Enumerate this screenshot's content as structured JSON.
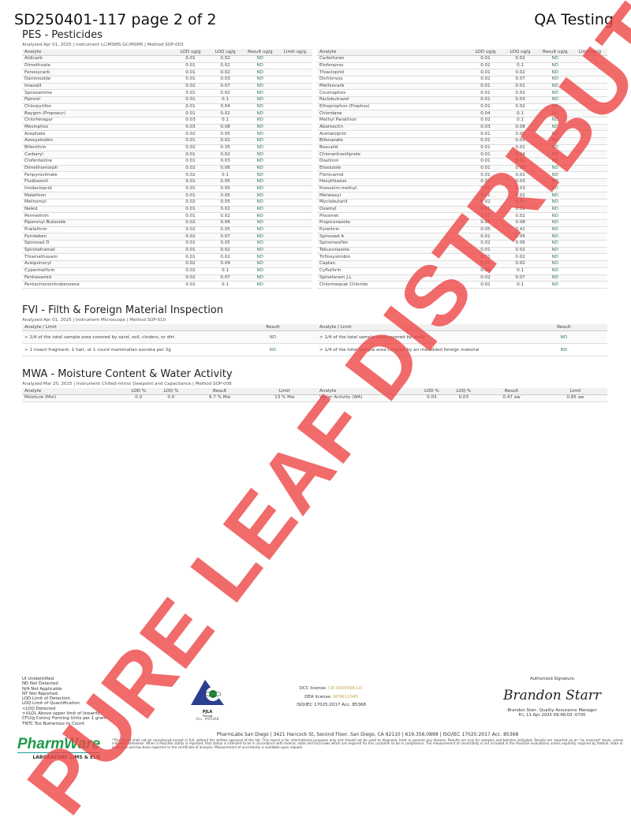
{
  "header": {
    "title": "SD250401-117 page 2 of 2",
    "client": "QA Testing"
  },
  "pes": {
    "title": "PES - Pesticides",
    "meta": "Analyzed Apr 01, 2025  |  Instrument LC/MSMS GC/MSMS  | Method SOP-003",
    "columns": [
      "Analyte",
      "LOD ug/g",
      "LOQ ug/g",
      "Result ug/g",
      "Limit ug/g"
    ],
    "left": [
      [
        "Aldicarb",
        "0.01",
        "0.02",
        "ND"
      ],
      [
        "Dimethoate",
        "0.01",
        "0.02",
        "ND"
      ],
      [
        "Fenoxycarb",
        "0.01",
        "0.02",
        "ND"
      ],
      [
        "Daminozide",
        "0.01",
        "0.03",
        "ND"
      ],
      [
        "Imazalil",
        "0.02",
        "0.07",
        "ND"
      ],
      [
        "Spiroxamine",
        "0.01",
        "0.02",
        "ND"
      ],
      [
        "Fipronil",
        "0.01",
        "0.1",
        "ND"
      ],
      [
        "Chlorpyrifos",
        "0.01",
        "0.04",
        "ND"
      ],
      [
        "Baygon (Propoxur)",
        "0.01",
        "0.02",
        "ND"
      ],
      [
        "Chlorfenapyr",
        "0.03",
        "0.1",
        "ND"
      ],
      [
        "Mevinphos",
        "0.03",
        "0.08",
        "ND"
      ],
      [
        "Acephate",
        "0.02",
        "0.05",
        "ND"
      ],
      [
        "Azoxystrobin",
        "0.01",
        "0.02",
        "ND"
      ],
      [
        "Bifenthrin",
        "0.02",
        "0.35",
        "ND"
      ],
      [
        "Carbaryl",
        "0.01",
        "0.02",
        "ND"
      ],
      [
        "Clofentezine",
        "0.01",
        "0.03",
        "ND"
      ],
      [
        "Dimethomorph",
        "0.02",
        "0.06",
        "ND"
      ],
      [
        "Fenpyroximate",
        "0.02",
        "0.1",
        "ND"
      ],
      [
        "Fludioxonil",
        "0.01",
        "0.05",
        "ND"
      ],
      [
        "Imidacloprid",
        "0.01",
        "0.05",
        "ND"
      ],
      [
        "Malathion",
        "0.01",
        "0.05",
        "ND"
      ],
      [
        "Methomyl",
        "0.02",
        "0.05",
        "ND"
      ],
      [
        "Naled",
        "0.01",
        "0.02",
        "ND"
      ],
      [
        "Permethrin",
        "0.01",
        "0.02",
        "ND"
      ],
      [
        "Piperonyl Butoxide",
        "0.02",
        "0.06",
        "ND"
      ],
      [
        "Prallethrin",
        "0.02",
        "0.05",
        "ND"
      ],
      [
        "Pyridaben",
        "0.02",
        "0.07",
        "ND"
      ],
      [
        "Spinosad D",
        "0.01",
        "0.05",
        "ND"
      ],
      [
        "Spirotetramat",
        "0.01",
        "0.02",
        "ND"
      ],
      [
        "Thiamethoxam",
        "0.01",
        "0.02",
        "ND"
      ],
      [
        "Acequinocyl",
        "0.02",
        "0.09",
        "ND"
      ],
      [
        "Cypermethrin",
        "0.02",
        "0.1",
        "ND"
      ],
      [
        "Fenhexamid",
        "0.02",
        "0.07",
        "ND"
      ],
      [
        "Pentachloronitrobenzene",
        "0.01",
        "0.1",
        "ND"
      ]
    ],
    "right": [
      [
        "Carbofuran",
        "0.01",
        "0.02",
        "ND"
      ],
      [
        "Etofenprox",
        "0.02",
        "0.1",
        "ND"
      ],
      [
        "Thiacloprid",
        "0.01",
        "0.02",
        "ND"
      ],
      [
        "Dichlorvos",
        "0.02",
        "0.07",
        "ND"
      ],
      [
        "Methiocarb",
        "0.01",
        "0.02",
        "ND"
      ],
      [
        "Coumaphos",
        "0.01",
        "0.02",
        "ND"
      ],
      [
        "Paclobutrazol",
        "0.01",
        "0.03",
        "ND"
      ],
      [
        "Ethoprophos (Prophos)",
        "0.01",
        "0.02",
        "ND"
      ],
      [
        "Chlordane",
        "0.04",
        "0.1",
        "ND"
      ],
      [
        "Methyl Parathion",
        "0.02",
        "0.1",
        "ND"
      ],
      [
        "Abamectin",
        "0.03",
        "0.08",
        "ND"
      ],
      [
        "Acetamiprid",
        "0.01",
        "0.05",
        "ND"
      ],
      [
        "Bifenazate",
        "0.01",
        "0.05",
        "ND"
      ],
      [
        "Boscalid",
        "0.01",
        "0.02",
        "ND"
      ],
      [
        "Chlorantraniliprole",
        "0.01",
        "0.04",
        "ND"
      ],
      [
        "Diazinon",
        "0.01",
        "0.02",
        "ND"
      ],
      [
        "Etoxazole",
        "0.01",
        "0.05",
        "ND"
      ],
      [
        "Flonicamid",
        "0.01",
        "0.02",
        "ND"
      ],
      [
        "Hexythiazox",
        "0.01",
        "0.03",
        "ND"
      ],
      [
        "Kresoxim-methyl",
        "0.01",
        "0.03",
        "ND"
      ],
      [
        "Metalaxyl",
        "0.01",
        "0.02",
        "ND"
      ],
      [
        "Myclobutanil",
        "0.02",
        "0.07",
        "ND"
      ],
      [
        "Oxamyl",
        "0.01",
        "0.02",
        "ND"
      ],
      [
        "Phosmet",
        "0.01",
        "0.02",
        "ND"
      ],
      [
        "Propiconazole",
        "0.03",
        "0.08",
        "ND"
      ],
      [
        "Pyrethrin",
        "0.05",
        "0.41",
        "ND"
      ],
      [
        "Spinosad A",
        "0.01",
        "0.05",
        "ND"
      ],
      [
        "Spiromesifen",
        "0.02",
        "0.06",
        "ND"
      ],
      [
        "Tebuconazole",
        "0.01",
        "0.02",
        "ND"
      ],
      [
        "Trifloxystrobin",
        "0.01",
        "0.02",
        "ND"
      ],
      [
        "Captan",
        "0.01",
        "0.02",
        "ND"
      ],
      [
        "Cyfluthrin",
        "0.04",
        "0.1",
        "ND"
      ],
      [
        "Spinetoram J,L",
        "0.02",
        "0.07",
        "ND"
      ],
      [
        "Chlormequat Chloride",
        "0.02",
        "0.1",
        "ND"
      ]
    ]
  },
  "fvi": {
    "title": "FVI - Filth & Foreign Material Inspection",
    "meta": "Analyzed Apr 01, 2025  |  Instrument Microscope  | Method SOP-010",
    "columns": [
      "Analyte / Limit",
      "Result"
    ],
    "left": [
      [
        "> 1/4 of the total sample area covered by sand, soil, cinders, or dirt",
        "ND"
      ],
      [
        "> 1 insect fragment, 1 hair, or 1 count mammalian excreta per 3g",
        "ND"
      ]
    ],
    "right": [
      [
        "> 1/4 of the total sample area covered by mold",
        "ND"
      ],
      [
        "> 1/4 of the total sample area covered by an imbedded foreign material",
        "ND"
      ]
    ]
  },
  "mwa": {
    "title": "MWA - Moisture Content & Water Activity",
    "meta": "Analyzed Mar 20, 2025  |  Instrument Chilled-mirror Dewpoint and Capacitance   | Method SOP-008",
    "columns": [
      "Analyte",
      "LOD %",
      "LOQ %",
      "Result",
      "Limit"
    ],
    "left": [
      [
        "Moisture (Moi)",
        "0.0",
        "0.0",
        "6.7 % Mw",
        "13 % Mw"
      ]
    ],
    "right": [
      [
        "Water Activity (WA)",
        "0.03",
        "0.03",
        "0.47 aw",
        "0.85 aw"
      ]
    ]
  },
  "footer": {
    "legend": [
      "UI Unidentified",
      "ND Not Detected",
      "N/A Not Applicable",
      "NT Not Reported",
      "LOD Limit of Detection",
      "LOQ Limit of Quantification",
      "<LOQ Detected",
      ">ULOL Above upper limit of linearity",
      "CFU/g Colony Forming Units per 1 gram",
      "TNTC Too Numerous to Count"
    ],
    "accreditation": {
      "name": "PJLA",
      "sub": "Testing",
      "acc": "Acc. #85368"
    },
    "dcc_label": "DCC license: ",
    "dcc": "C8-0000098-LIC",
    "dea_label": "DEA license: ",
    "dea": "RP0611045",
    "iso": "ISO/IEC 17025:2017 Acc. 85368",
    "sig_label": "Authorized Signature",
    "signature": "Brandon Starr",
    "signer": "Brandon Starr, Quality Assurance Manager",
    "signed_at": "Fri, 11 Apr 2025 09:48:03 -0700",
    "address": "PharmLabs San Diego | 3421 Hancock St, Second Floor, San Diego, CA 92110 | 619.356.0898 | ISO/IEC 17025:2017 Acc. 85368",
    "disclaimer": "*This report shall not be reproduced except in full, without the written approval of the lab. This report is for informational purposes only and should not be used to diagnose, treat or prevent any disease. Results are only for samples and batches indicated. Results are reported on an \"as received\" basis, unless indicated otherwise. When a Pass/Fail status is reported, that status is intended to be in accordance with federal, state and local laws which are required for this customer to be in compliance. The measurement of uncertainty is not included in the Pass/Fail evaluations unless explicitly required by federal, state or local laws and has been reported on the certificate of analysis. Measurement of uncertainty is available upon request.",
    "logo": {
      "brand": "PharmWare",
      "tagline": "LABORATORY LIMS & ELN"
    }
  },
  "watermark": "PURE LEAF DISTRIBUTION",
  "colors": {
    "nd": "#3a7a5a",
    "watermark": "#ee4646",
    "license": "#c9a14a",
    "logo_green": "#1f9a4a",
    "logo_teal": "#1aa0a0"
  }
}
